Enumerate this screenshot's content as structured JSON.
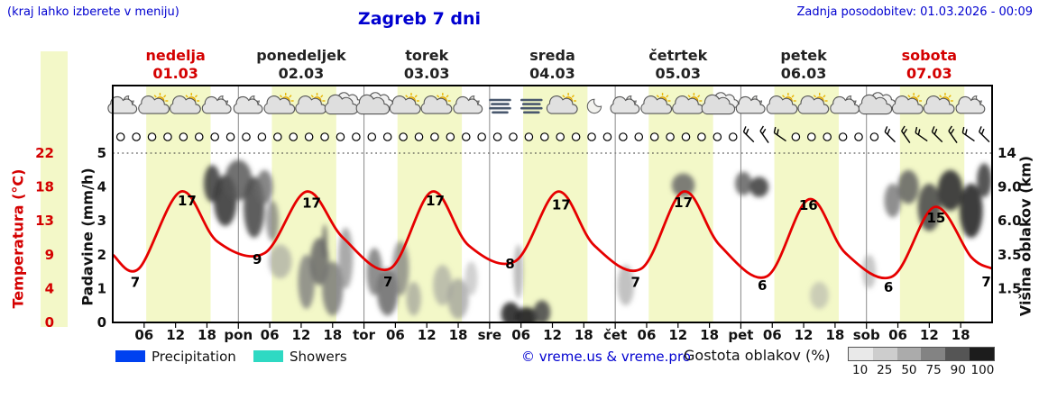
{
  "header": {
    "hint": "(kraj lahko izberete v meniju)",
    "title": "Zagreb 7 dni",
    "updated": "Zadnja posodobitev: 01.03.2026 - 00:09"
  },
  "colors": {
    "accent_blue": "#0000d0",
    "accent_red": "#d40000",
    "band_yellow": "#f3f8c8",
    "temp_line": "#e60000",
    "precip_blue": "#0041f0",
    "showers_cyan": "#2ed9c3"
  },
  "days": [
    {
      "name": "nedelja",
      "date": "01.03",
      "highlight": true
    },
    {
      "name": "ponedeljek",
      "date": "02.03",
      "highlight": false
    },
    {
      "name": "torek",
      "date": "03.03",
      "highlight": false
    },
    {
      "name": "sreda",
      "date": "04.03",
      "highlight": false
    },
    {
      "name": "četrtek",
      "date": "05.03",
      "highlight": false
    },
    {
      "name": "petek",
      "date": "06.03",
      "highlight": false
    },
    {
      "name": "sobota",
      "date": "07.03",
      "highlight": true
    }
  ],
  "axes": {
    "temp_label": "Temperatura (°C)",
    "temp_ticks": [
      "22",
      "18",
      "13",
      "9",
      "4",
      "0"
    ],
    "precip_label": "Padavine (mm/h)",
    "precip_ticks": [
      "5",
      "4",
      "3",
      "2",
      "1",
      "0"
    ],
    "cloud_label": "Višina oblakov (km)",
    "cloud_ticks": [
      "14",
      "9.0",
      "6.0",
      "3.5",
      "1.5"
    ],
    "hour_labels": [
      "06",
      "12",
      "18"
    ],
    "day_abbrevs": [
      "pon",
      "tor",
      "sre",
      "čet",
      "pet",
      "sob"
    ]
  },
  "legend": {
    "precip_label": "Precipitation",
    "showers_label": "Showers",
    "copyright": "© vreme.us & vreme.pro",
    "density_label": "Gostota oblakov (%)",
    "density_ticks": [
      "10",
      "25",
      "50",
      "75",
      "90",
      "100"
    ],
    "density_colors": [
      "#e9e9e9",
      "#cdcdcd",
      "#ababab",
      "#838383",
      "#555555",
      "#1c1c1c"
    ]
  },
  "chart_data": {
    "type": "line",
    "title": "Zagreb 7 dni",
    "x_axis": {
      "unit": "hour",
      "range_hours": 168,
      "start_label": "01.03 00:00"
    },
    "y_left_temperature_c": {
      "min": 0,
      "max": 22,
      "ticks": [
        0,
        4,
        9,
        13,
        18,
        22
      ]
    },
    "y_left_precip_mm_h": {
      "min": 0,
      "max": 5.5,
      "ticks": [
        0,
        1,
        2,
        3,
        4,
        5
      ]
    },
    "y_right_cloud_km": {
      "ticks": [
        1.5,
        3.5,
        6.0,
        9.0,
        14
      ]
    },
    "daylight_band_hours": [
      6.4,
      18.7
    ],
    "temperature_points": [
      [
        0,
        8.8
      ],
      [
        5,
        7
      ],
      [
        13,
        17
      ],
      [
        20,
        10.5
      ],
      [
        29,
        9
      ],
      [
        37,
        17
      ],
      [
        44,
        11
      ],
      [
        53,
        7
      ],
      [
        61,
        17
      ],
      [
        68,
        10
      ],
      [
        77,
        8
      ],
      [
        85,
        17
      ],
      [
        92,
        10
      ],
      [
        101,
        7
      ],
      [
        109,
        17
      ],
      [
        116,
        10
      ],
      [
        125,
        6
      ],
      [
        133,
        16
      ],
      [
        140,
        9
      ],
      [
        149,
        6
      ],
      [
        157,
        15
      ],
      [
        164,
        8.5
      ],
      [
        168,
        7
      ]
    ],
    "extreme_labels": [
      [
        4.3,
        4.6,
        "7"
      ],
      [
        14.2,
        15.2,
        "17"
      ],
      [
        27.6,
        7.6,
        "9"
      ],
      [
        38.0,
        14.9,
        "17"
      ],
      [
        52.6,
        4.7,
        "7"
      ],
      [
        61.6,
        15.2,
        "17"
      ],
      [
        75.9,
        7.0,
        "8"
      ],
      [
        85.7,
        14.7,
        "17"
      ],
      [
        99.9,
        4.6,
        "7"
      ],
      [
        109.0,
        15.0,
        "17"
      ],
      [
        124.1,
        4.2,
        "6"
      ],
      [
        132.9,
        14.6,
        "16"
      ],
      [
        148.2,
        4.0,
        "6"
      ],
      [
        157.3,
        13.0,
        "15"
      ],
      [
        166.9,
        4.7,
        "7"
      ]
    ],
    "symbol_row": {
      "count": 56,
      "start_hour": 1.5,
      "step_hours": 3,
      "barb_slots": [
        40,
        41,
        42,
        49,
        50,
        51,
        52,
        53,
        54,
        55
      ]
    },
    "icons": [
      [
        2,
        "moon-cloud"
      ],
      [
        8,
        "sun-cloud"
      ],
      [
        14,
        "sun-cloud"
      ],
      [
        20,
        "moon-cloud"
      ],
      [
        26,
        "moon-cloud"
      ],
      [
        32,
        "sun-cloud"
      ],
      [
        38,
        "sun-cloud"
      ],
      [
        44,
        "cloud"
      ],
      [
        50,
        "cloud"
      ],
      [
        56,
        "sun-cloud"
      ],
      [
        62,
        "sun-cloud"
      ],
      [
        68,
        "moon-cloud"
      ],
      [
        74,
        "fog"
      ],
      [
        80,
        "fog"
      ],
      [
        86,
        "sun-cloud"
      ],
      [
        92,
        "moon"
      ],
      [
        98,
        "moon-cloud"
      ],
      [
        104,
        "sun-cloud"
      ],
      [
        110,
        "sun-cloud"
      ],
      [
        116,
        "cloud"
      ],
      [
        122,
        "moon-cloud"
      ],
      [
        128,
        "sun-cloud"
      ],
      [
        134,
        "sun-cloud"
      ],
      [
        140,
        "moon-cloud"
      ],
      [
        146,
        "cloud"
      ],
      [
        152,
        "sun-cloud"
      ],
      [
        158,
        "sun-cloud"
      ],
      [
        164,
        "moon-cloud"
      ]
    ],
    "cloud_blobs": [
      [
        19,
        4.1,
        1.6,
        0.55,
        0.75,
        0.9
      ],
      [
        21.5,
        3.6,
        2.2,
        0.75,
        0.8,
        0.9
      ],
      [
        24,
        4.2,
        2.6,
        0.6,
        0.65,
        0.85
      ],
      [
        27,
        3.4,
        2.0,
        0.9,
        0.7,
        0.9
      ],
      [
        29,
        4.0,
        1.6,
        0.5,
        0.55,
        0.8
      ],
      [
        30.5,
        3.0,
        1.2,
        0.6,
        0.5,
        0.7
      ],
      [
        32,
        1.8,
        2.2,
        0.5,
        0.3,
        0.6
      ],
      [
        37,
        1.2,
        1.6,
        0.8,
        0.45,
        0.8
      ],
      [
        39.5,
        1.8,
        1.8,
        0.7,
        0.55,
        0.85
      ],
      [
        40.5,
        2.4,
        0.5,
        0.5,
        0.6,
        0.8
      ],
      [
        42,
        1.0,
        2.0,
        0.8,
        0.5,
        0.8
      ],
      [
        44.5,
        1.9,
        1.4,
        0.9,
        0.4,
        0.7
      ],
      [
        50,
        1.5,
        1.5,
        0.7,
        0.5,
        0.8
      ],
      [
        52.5,
        0.9,
        2.0,
        0.7,
        0.55,
        0.85
      ],
      [
        55,
        1.6,
        1.6,
        0.8,
        0.45,
        0.75
      ],
      [
        57.5,
        0.7,
        1.4,
        0.5,
        0.35,
        0.6
      ],
      [
        63,
        1.1,
        1.8,
        0.6,
        0.3,
        0.6
      ],
      [
        66,
        0.7,
        2.0,
        0.6,
        0.35,
        0.65
      ],
      [
        68.5,
        1.3,
        1.2,
        0.5,
        0.25,
        0.5
      ],
      [
        76,
        0.25,
        1.8,
        0.35,
        0.85,
        0.95
      ],
      [
        79,
        0.15,
        2.2,
        0.3,
        0.9,
        0.95
      ],
      [
        82,
        0.3,
        1.6,
        0.35,
        0.7,
        0.9
      ],
      [
        77.5,
        1.5,
        0.9,
        0.8,
        0.35,
        0.6
      ],
      [
        98,
        1.1,
        1.6,
        0.6,
        0.3,
        0.6
      ],
      [
        109,
        4.05,
        2.2,
        0.35,
        0.55,
        0.85
      ],
      [
        120.5,
        4.1,
        1.6,
        0.35,
        0.6,
        0.85
      ],
      [
        123.5,
        4.0,
        1.8,
        0.3,
        0.75,
        0.9
      ],
      [
        135,
        0.8,
        1.8,
        0.4,
        0.25,
        0.5
      ],
      [
        144.5,
        1.5,
        1.3,
        0.5,
        0.3,
        0.55
      ],
      [
        149,
        3.6,
        1.6,
        0.5,
        0.5,
        0.8
      ],
      [
        152,
        4.0,
        2.0,
        0.5,
        0.6,
        0.85
      ],
      [
        156,
        3.4,
        2.2,
        0.7,
        0.7,
        0.9
      ],
      [
        160,
        3.9,
        2.4,
        0.6,
        0.8,
        0.95
      ],
      [
        164,
        3.3,
        2.2,
        0.8,
        0.85,
        0.95
      ],
      [
        166.5,
        4.2,
        1.4,
        0.5,
        0.75,
        0.9
      ]
    ]
  }
}
